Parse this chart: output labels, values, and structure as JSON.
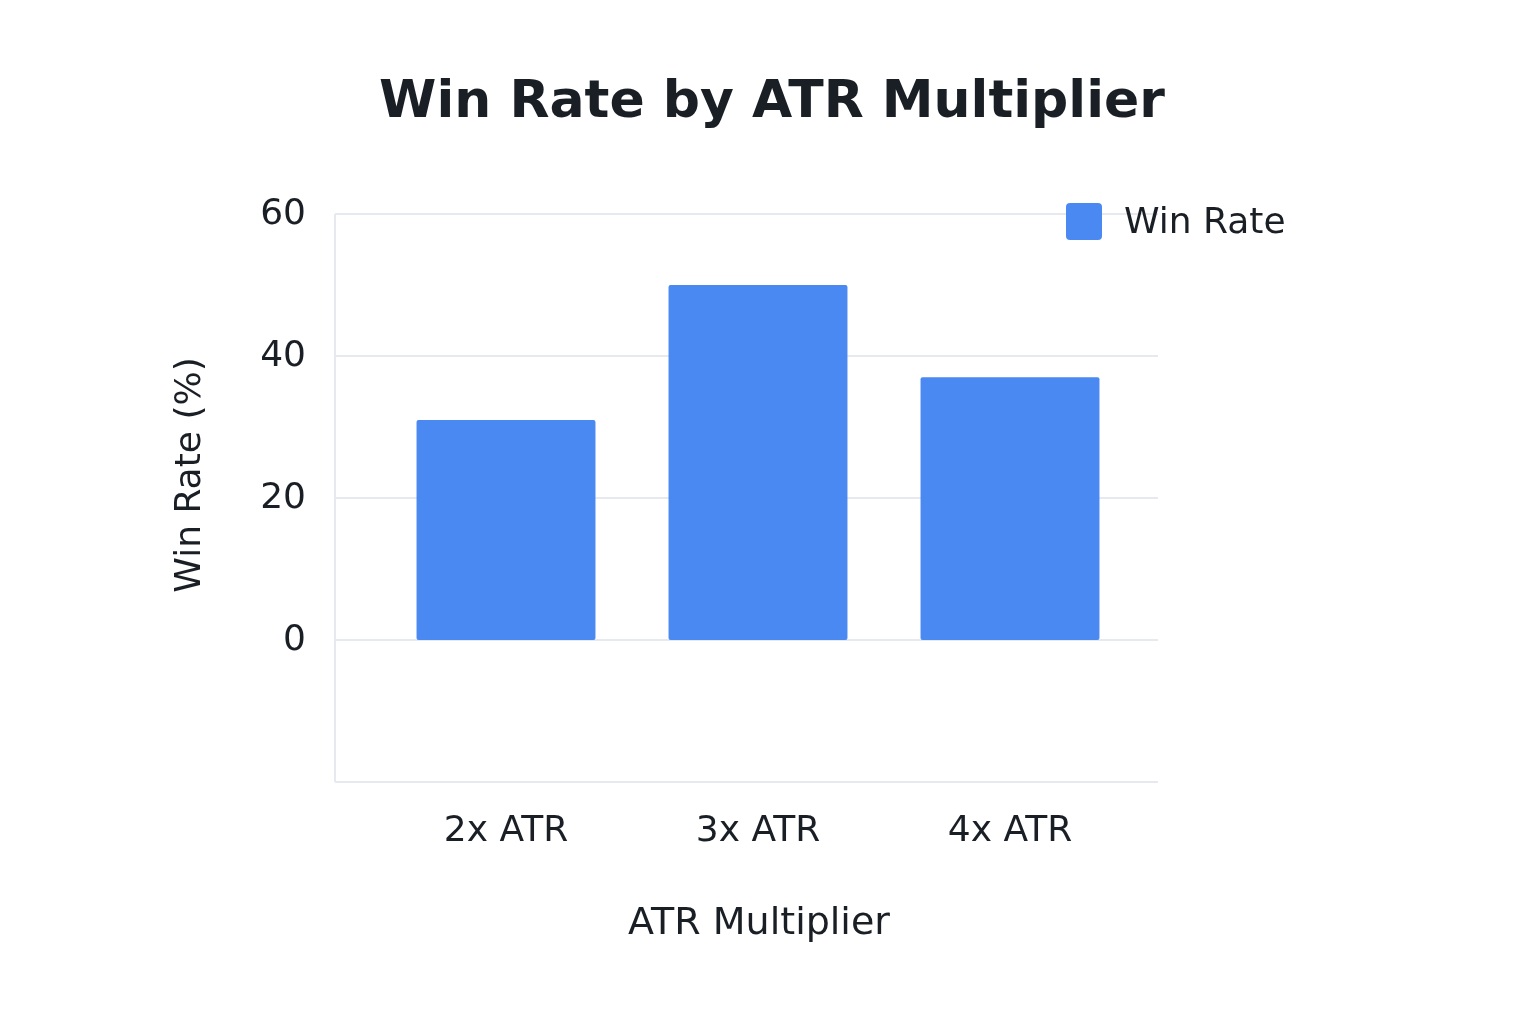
{
  "chart_data": {
    "type": "bar",
    "title": "Win Rate by ATR Multiplier",
    "xlabel": "ATR Multiplier",
    "ylabel": "Win Rate (%)",
    "categories": [
      "2x ATR",
      "3x ATR",
      "4x ATR"
    ],
    "series": [
      {
        "name": "Win Rate",
        "color": "#4a88f2",
        "values": [
          31,
          50,
          37
        ]
      }
    ],
    "ylim": [
      -20,
      60
    ],
    "yticks": [
      {
        "value": -20,
        "label": null
      },
      0,
      20,
      40,
      60
    ],
    "grid": "y",
    "legend": "top right"
  }
}
